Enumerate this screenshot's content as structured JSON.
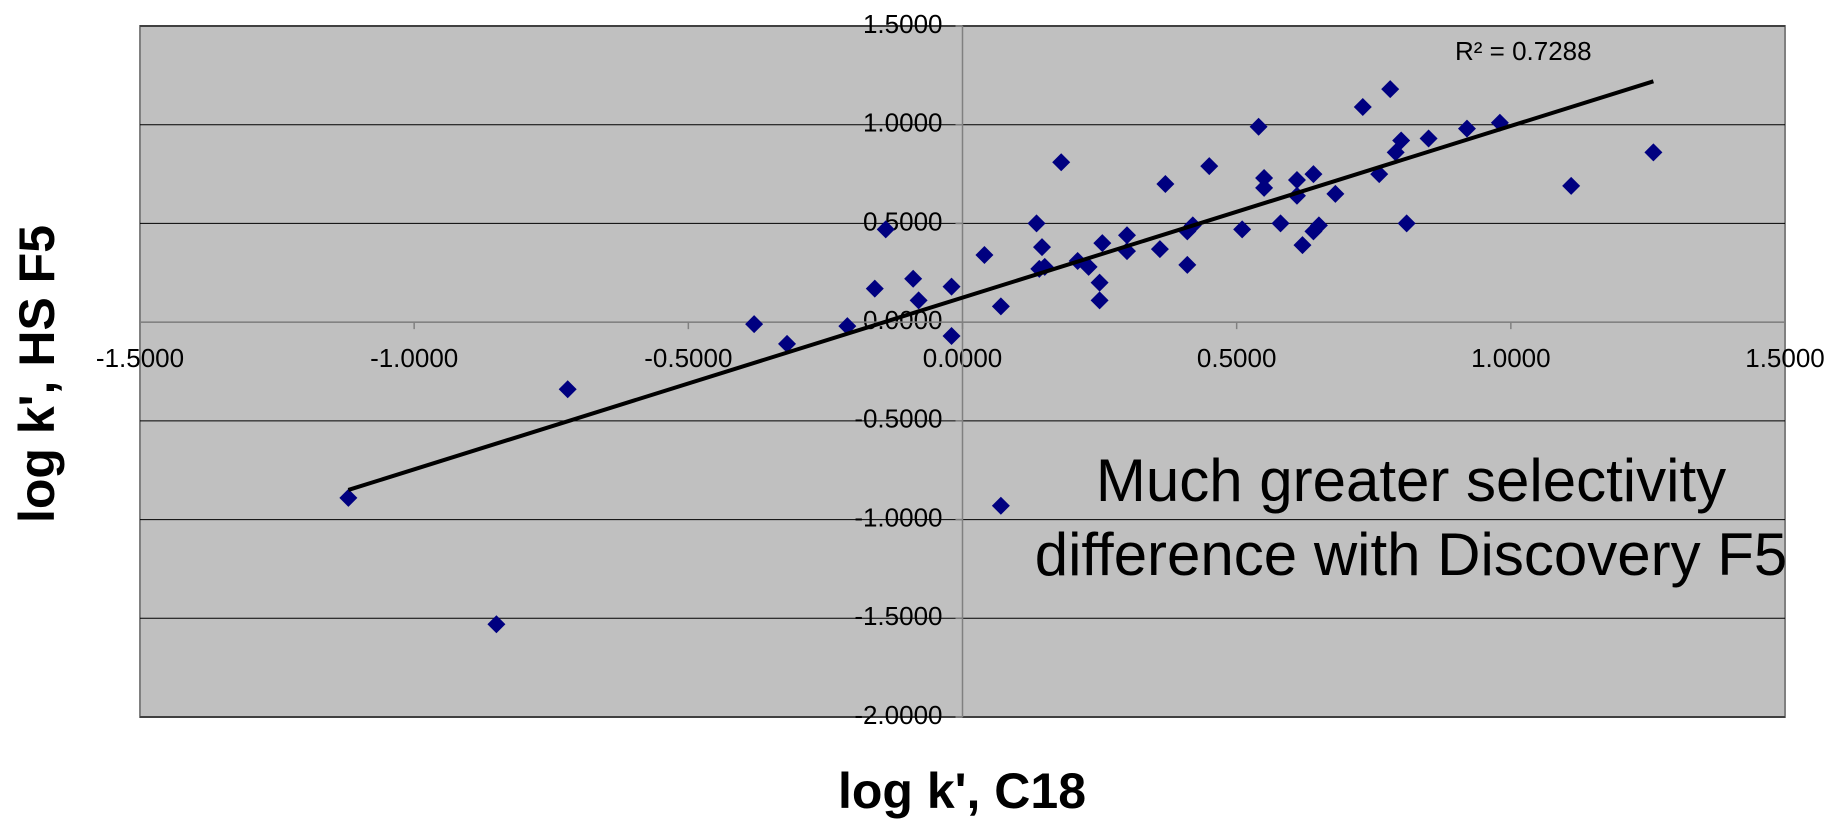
{
  "chart_data": {
    "type": "scatter",
    "xlabel": "log k', C18",
    "ylabel": "log k', HS F5",
    "r2_label": "R² = 0.7288",
    "annotation": [
      "Much greater selectivity",
      "difference with Discovery F5"
    ],
    "xlim": [
      -1.5,
      1.5
    ],
    "ylim": [
      -2.0,
      1.5
    ],
    "xticks": [
      {
        "value": -1.5,
        "label": "-1.5000"
      },
      {
        "value": -1.0,
        "label": "-1.0000"
      },
      {
        "value": -0.5,
        "label": "-0.5000"
      },
      {
        "value": 0,
        "label": "0.0000"
      },
      {
        "value": 0.5,
        "label": "0.5000"
      },
      {
        "value": 1.0,
        "label": "1.0000"
      },
      {
        "value": 1.5,
        "label": "1.5000"
      }
    ],
    "yticks": [
      {
        "value": -2.0,
        "label": "-2.0000"
      },
      {
        "value": -1.5,
        "label": "-1.5000"
      },
      {
        "value": -1.0,
        "label": "-1.0000"
      },
      {
        "value": -0.5,
        "label": "-0.5000"
      },
      {
        "value": 0,
        "label": "0.0000"
      },
      {
        "value": 0.5,
        "label": "0.5000"
      },
      {
        "value": 1.0,
        "label": "1.0000"
      },
      {
        "value": 1.5,
        "label": "1.5000"
      }
    ],
    "grid": true,
    "background": "#c0c0c0",
    "series": [
      {
        "color": "#000080",
        "x": [
          -1.12,
          -0.85,
          -0.72,
          -0.38,
          -0.32,
          -0.21,
          -0.16,
          -0.14,
          -0.09,
          -0.08,
          -0.02,
          -0.02,
          0.04,
          0.07,
          0.07,
          0.135,
          0.14,
          0.145,
          0.15,
          0.18,
          0.21,
          0.23,
          0.25,
          0.25,
          0.255,
          0.3,
          0.3,
          0.36,
          0.37,
          0.41,
          0.41,
          0.42,
          0.45,
          0.51,
          0.54,
          0.55,
          0.55,
          0.58,
          0.61,
          0.61,
          0.62,
          0.64,
          0.64,
          0.65,
          0.68,
          0.73,
          0.76,
          0.78,
          0.79,
          0.8,
          0.81,
          0.85,
          0.92,
          0.98,
          1.11,
          1.26
        ],
        "y": [
          -0.89,
          -1.53,
          -0.34,
          -0.01,
          -0.11,
          -0.02,
          0.17,
          0.47,
          0.22,
          0.11,
          0.18,
          -0.07,
          0.34,
          0.08,
          -0.93,
          0.5,
          0.27,
          0.38,
          0.28,
          0.81,
          0.31,
          0.28,
          0.2,
          0.11,
          0.4,
          0.44,
          0.36,
          0.37,
          0.7,
          0.29,
          0.46,
          0.49,
          0.79,
          0.47,
          0.99,
          0.73,
          0.68,
          0.5,
          0.72,
          0.64,
          0.39,
          0.46,
          0.75,
          0.49,
          0.65,
          1.09,
          0.75,
          1.18,
          0.86,
          0.92,
          0.5,
          0.93,
          0.98,
          1.01,
          0.69,
          0.86
        ]
      }
    ],
    "trendline": {
      "color": "#000000",
      "x": [
        -1.12,
        1.26
      ],
      "y": [
        -0.85,
        1.22
      ]
    }
  }
}
